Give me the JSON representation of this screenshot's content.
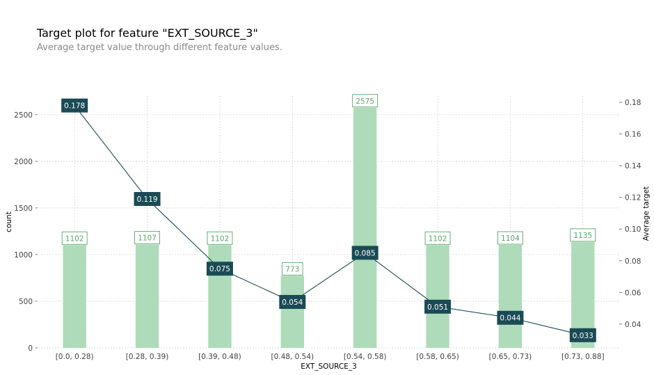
{
  "title": "Target plot for feature \"EXT_SOURCE_3\"",
  "subtitle": "Average target value through different feature values.",
  "chart_data": {
    "type": "bar",
    "categories": [
      "[0.0, 0.28)",
      "[0.28, 0.39)",
      "[0.39, 0.48)",
      "[0.48, 0.54)",
      "[0.54, 0.58)",
      "[0.58, 0.65)",
      "[0.65, 0.73)",
      "[0.73, 0.88]"
    ],
    "xlabel": "EXT_SOURCE_3",
    "ylabel": "count",
    "y2label": "Average target",
    "ylim": [
      0,
      2700
    ],
    "y2lim": [
      0.025,
      0.184
    ],
    "yticks": [
      0,
      500,
      1000,
      1500,
      2000,
      2500
    ],
    "y2ticks": [
      0.04,
      0.06,
      0.08,
      0.1,
      0.12,
      0.14,
      0.16,
      0.18
    ],
    "grid": true,
    "series": [
      {
        "values": [
          1102,
          1107,
          1102,
          773,
          2575,
          1102,
          1104,
          1135
        ],
        "color": "#aedbb9",
        "label_color": "#5aa36a"
      },
      {
        "values": [
          0.178,
          0.119,
          0.075,
          0.054,
          0.085,
          0.051,
          0.044,
          0.033
        ],
        "color": "#1a4a55"
      }
    ]
  }
}
